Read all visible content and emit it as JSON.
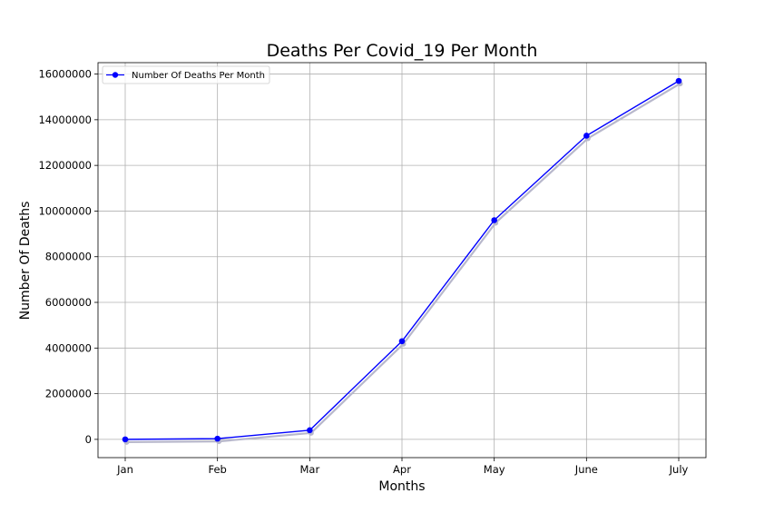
{
  "chart_data": {
    "type": "line",
    "title": "Deaths Per Covid_19 Per Month",
    "xlabel": "Months",
    "ylabel": "Number Of Deaths",
    "categories": [
      "Jan",
      "Feb",
      "Mar",
      "Apr",
      "May",
      "June",
      "July"
    ],
    "series": [
      {
        "name": "Number Of Deaths Per Month",
        "values": [
          0,
          30000,
          400000,
          4300000,
          9600000,
          13300000,
          15700000
        ],
        "color": "#0000ff",
        "shadow_color": "#b8b8cc"
      }
    ],
    "ylim": [
      -800000,
      16500000
    ],
    "yticks": [
      0,
      2000000,
      4000000,
      6000000,
      8000000,
      10000000,
      12000000,
      14000000,
      16000000
    ],
    "ytick_labels": [
      "0",
      "2000000",
      "4000000",
      "6000000",
      "8000000",
      "10000000",
      "12000000",
      "14000000",
      "16000000"
    ],
    "grid": true,
    "legend": "top-left"
  }
}
